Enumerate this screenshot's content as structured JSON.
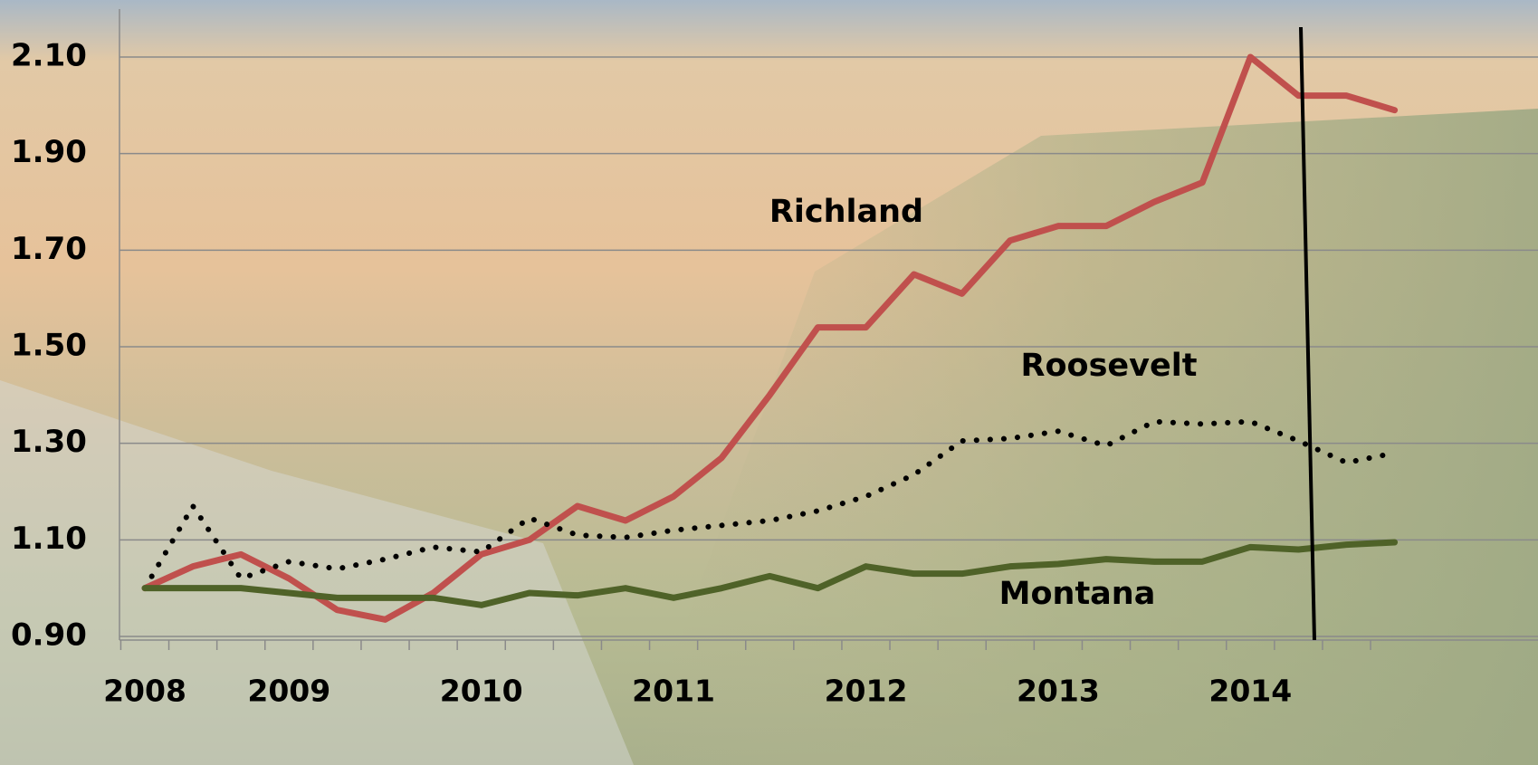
{
  "chart_data": {
    "type": "line",
    "categories": [
      "2008",
      null,
      null,
      "2009",
      null,
      null,
      null,
      "2010",
      null,
      null,
      null,
      "2011",
      null,
      null,
      null,
      "2012",
      null,
      null,
      null,
      "2013",
      null,
      null,
      null,
      "2014",
      null,
      null,
      null
    ],
    "series": [
      {
        "name": "Richland",
        "color": "#c0504d",
        "dash": "solid",
        "values": [
          1.0,
          1.045,
          1.07,
          1.02,
          0.955,
          0.935,
          0.99,
          1.07,
          1.1,
          1.17,
          1.14,
          1.19,
          1.27,
          1.4,
          1.54,
          1.54,
          1.65,
          1.61,
          1.72,
          1.75,
          1.75,
          1.8,
          1.84,
          2.1,
          2.02,
          2.02,
          1.99
        ]
      },
      {
        "name": "Roosevelt",
        "color": "#000000",
        "dash": "dotted",
        "values": [
          1.0,
          1.17,
          1.02,
          1.055,
          1.04,
          1.06,
          1.085,
          1.075,
          1.145,
          1.11,
          1.105,
          1.12,
          1.13,
          1.14,
          1.16,
          1.19,
          1.235,
          1.305,
          1.31,
          1.325,
          1.295,
          1.345,
          1.34,
          1.345,
          1.305,
          1.26,
          1.28
        ]
      },
      {
        "name": "Montana",
        "color": "#4f6228",
        "dash": "solid",
        "values": [
          1.0,
          1.0,
          1.0,
          0.99,
          0.98,
          0.98,
          0.98,
          0.965,
          0.99,
          0.985,
          1.0,
          0.98,
          1.0,
          1.025,
          1.0,
          1.045,
          1.03,
          1.03,
          1.045,
          1.05,
          1.06,
          1.055,
          1.055,
          1.085,
          1.08,
          1.09,
          1.095
        ]
      }
    ],
    "ylim": [
      0.9,
      2.2
    ],
    "yticks": [
      {
        "value": 0.9,
        "label": "0.90"
      },
      {
        "value": 1.1,
        "label": "1.10"
      },
      {
        "value": 1.3,
        "label": "1.30"
      },
      {
        "value": 1.5,
        "label": "1.50"
      },
      {
        "value": 1.7,
        "label": "1.70"
      },
      {
        "value": 1.9,
        "label": "1.90"
      },
      {
        "value": 2.1,
        "label": "2.10"
      }
    ],
    "grid": true
  }
}
